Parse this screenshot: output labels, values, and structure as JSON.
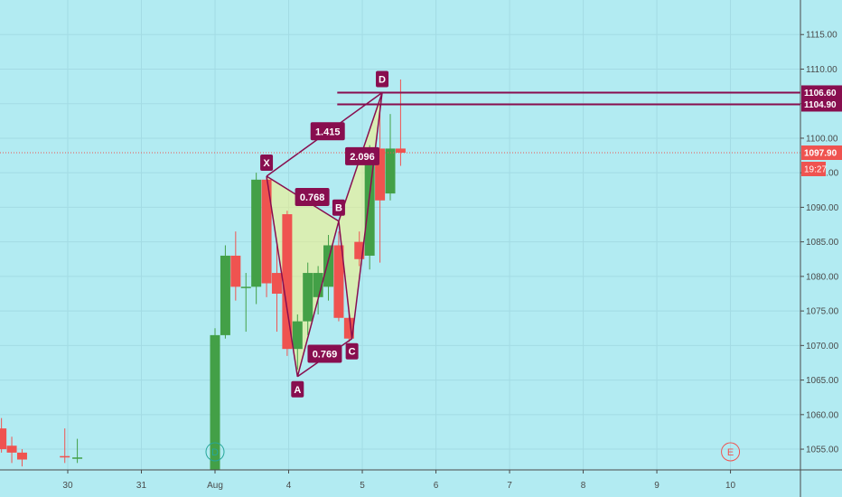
{
  "chart_data": {
    "type": "candlestick",
    "y_range": [
      1052,
      1120
    ],
    "y_ticks": [
      1055,
      1060,
      1065,
      1070,
      1075,
      1080,
      1085,
      1090,
      1095,
      1100,
      1105,
      1110,
      1115
    ],
    "y_tick_labels": [
      "1055.00",
      "1060.00",
      "1065.00",
      "1070.00",
      "1075.00",
      "1080.00",
      "1085.00",
      "1090.00",
      "1095.00",
      "1100.00",
      "1105.00",
      "1110.00",
      "1115.00"
    ],
    "x_range": [
      29.08,
      39.95
    ],
    "x_ticks": [
      {
        "x": 30,
        "label": "30"
      },
      {
        "x": 31,
        "label": "31"
      },
      {
        "x": 32,
        "label": "Aug"
      },
      {
        "x": 33,
        "label": "4"
      },
      {
        "x": 34,
        "label": "5"
      },
      {
        "x": 35,
        "label": "6"
      },
      {
        "x": 36,
        "label": "7"
      },
      {
        "x": 37,
        "label": "8"
      },
      {
        "x": 38,
        "label": "9"
      },
      {
        "x": 39,
        "label": "10"
      }
    ],
    "candles": [
      {
        "t": 29.1,
        "o": 1058.0,
        "h": 1059.5,
        "l": 1054.5,
        "c": 1055.0
      },
      {
        "t": 29.24,
        "o": 1055.5,
        "h": 1056.8,
        "l": 1053.0,
        "c": 1054.5
      },
      {
        "t": 29.38,
        "o": 1054.5,
        "h": 1055.0,
        "l": 1052.5,
        "c": 1053.5
      },
      {
        "t": 29.96,
        "o": 1054.0,
        "h": 1058.0,
        "l": 1053.0,
        "c": 1053.8
      },
      {
        "t": 30.13,
        "o": 1053.8,
        "h": 1056.5,
        "l": 1053.0,
        "c": 1053.8
      },
      {
        "t": 32.0,
        "o": 1052.0,
        "h": 1072.5,
        "l": 1052.0,
        "c": 1071.5
      },
      {
        "t": 32.14,
        "o": 1071.5,
        "h": 1084.5,
        "l": 1071.0,
        "c": 1083.0
      },
      {
        "t": 32.28,
        "o": 1083.0,
        "h": 1086.5,
        "l": 1076.5,
        "c": 1078.5
      },
      {
        "t": 32.42,
        "o": 1078.5,
        "h": 1080.5,
        "l": 1072.0,
        "c": 1078.5
      },
      {
        "t": 32.56,
        "o": 1078.5,
        "h": 1095.0,
        "l": 1076.0,
        "c": 1094.0
      },
      {
        "t": 32.7,
        "o": 1094.0,
        "h": 1094.5,
        "l": 1077.0,
        "c": 1079.0
      },
      {
        "t": 32.84,
        "o": 1080.5,
        "h": 1084.5,
        "l": 1072.0,
        "c": 1077.5
      },
      {
        "t": 32.98,
        "o": 1089.0,
        "h": 1089.5,
        "l": 1068.5,
        "c": 1069.5
      },
      {
        "t": 33.12,
        "o": 1069.5,
        "h": 1074.5,
        "l": 1066.5,
        "c": 1073.5
      },
      {
        "t": 33.26,
        "o": 1073.5,
        "h": 1082.0,
        "l": 1071.5,
        "c": 1080.5
      },
      {
        "t": 33.4,
        "o": 1077.0,
        "h": 1081.5,
        "l": 1074.5,
        "c": 1080.5
      },
      {
        "t": 33.54,
        "o": 1078.5,
        "h": 1086.0,
        "l": 1076.5,
        "c": 1084.5
      },
      {
        "t": 33.68,
        "o": 1084.5,
        "h": 1086.5,
        "l": 1073.5,
        "c": 1074.0
      },
      {
        "t": 33.82,
        "o": 1074.0,
        "h": 1075.0,
        "l": 1070.5,
        "c": 1071.0
      },
      {
        "t": 33.96,
        "o": 1085.0,
        "h": 1086.5,
        "l": 1081.5,
        "c": 1082.5
      },
      {
        "t": 34.1,
        "o": 1083.0,
        "h": 1099.0,
        "l": 1081.0,
        "c": 1098.5
      },
      {
        "t": 34.24,
        "o": 1098.5,
        "h": 1105.0,
        "l": 1082.0,
        "c": 1091.0
      },
      {
        "t": 34.38,
        "o": 1092.0,
        "h": 1103.5,
        "l": 1091.0,
        "c": 1098.5
      },
      {
        "t": 34.52,
        "o": 1098.5,
        "h": 1108.5,
        "l": 1096.0,
        "c": 1097.9
      }
    ],
    "colors": {
      "up": "#43a047",
      "down": "#ef5350",
      "pattern_line": "#880e4f",
      "pattern_fill": "#fff176",
      "last_price": "#ef5350",
      "background": "#b2ebf2"
    },
    "harmonic_pattern": {
      "points": [
        {
          "name": "X",
          "t": 32.7,
          "price": 1094.5
        },
        {
          "name": "A",
          "t": 33.12,
          "price": 1065.5
        },
        {
          "name": "B",
          "t": 33.68,
          "price": 1088.0
        },
        {
          "name": "C",
          "t": 33.86,
          "price": 1071.0
        },
        {
          "name": "D",
          "t": 34.27,
          "price": 1106.6
        }
      ],
      "ratios": [
        {
          "label": "0.768",
          "t": 33.32,
          "price": 1091.5
        },
        {
          "label": "0.769",
          "t": 33.49,
          "price": 1068.8
        },
        {
          "label": "1.415",
          "t": 33.53,
          "price": 1101.0
        },
        {
          "label": "2.096",
          "t": 34.0,
          "price": 1097.4
        }
      ]
    },
    "horizontal_lines": [
      {
        "price": 1106.6,
        "t_start": 33.66,
        "label": "1106.60"
      },
      {
        "price": 1104.9,
        "t_start": 33.66,
        "label": "1104.90"
      }
    ],
    "last_price": {
      "price": 1097.9,
      "label": "1097.90",
      "countdown": "19:27",
      "partial_tick": "1"
    },
    "markers": [
      {
        "letter": "D",
        "t": 32.0
      },
      {
        "letter": "E",
        "t": 39.0
      }
    ]
  }
}
